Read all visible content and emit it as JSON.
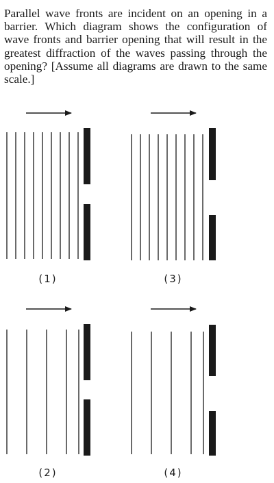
{
  "question": {
    "text": "Parallel wave fronts are incident on an opening in a barrier. Which diagram shows the configuration of wave fronts and barrier opening that will result in the greatest diffraction of the waves passing through the opening? [Assume all diagrams are drawn to the same scale.]"
  },
  "diagrams": [
    {
      "id": "diagram-1",
      "label": "(1)",
      "wavefront_count": 9,
      "wavefront_spacing": "small",
      "opening_size": "small"
    },
    {
      "id": "diagram-3",
      "label": "(3)",
      "wavefront_count": 9,
      "wavefront_spacing": "small",
      "opening_size": "large"
    },
    {
      "id": "diagram-2",
      "label": "(2)",
      "wavefront_count": 5,
      "wavefront_spacing": "large",
      "opening_size": "small"
    },
    {
      "id": "diagram-4",
      "label": "(4)",
      "wavefront_count": 5,
      "wavefront_spacing": "large",
      "opening_size": "large"
    }
  ],
  "colors": {
    "ink": "#1a1a1a",
    "background": "#ffffff"
  }
}
